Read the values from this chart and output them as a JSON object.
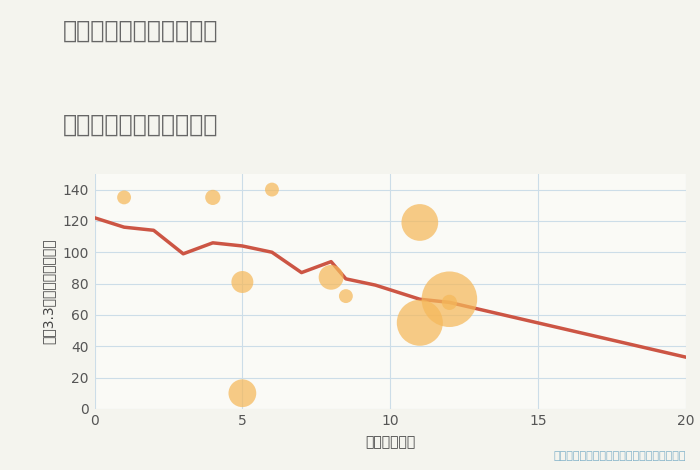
{
  "title_line1": "福岡県福岡市西区戸切の",
  "title_line2": "駅距離別中古戸建て価格",
  "xlabel": "駅距離（分）",
  "ylabel": "坪（3.3㎡）単価（万円）",
  "background_color": "#f4f4ee",
  "plot_bg_color": "#fafaf6",
  "line_color": "#cc5544",
  "line_x": [
    0,
    1,
    2,
    3,
    4,
    5,
    6,
    7,
    8,
    8.5,
    9.5,
    11,
    12,
    20
  ],
  "line_y": [
    122,
    116,
    114,
    99,
    106,
    104,
    100,
    87,
    94,
    83,
    79,
    70,
    68,
    33
  ],
  "scatter_x": [
    1,
    4,
    5,
    5,
    6,
    8,
    8.5,
    11,
    11,
    12,
    12
  ],
  "scatter_y": [
    135,
    135,
    81,
    10,
    140,
    84,
    72,
    119,
    55,
    70,
    68
  ],
  "scatter_sizes": [
    100,
    120,
    250,
    400,
    100,
    320,
    100,
    700,
    1100,
    1600,
    120
  ],
  "scatter_color": "#f5b85a",
  "scatter_alpha": 0.72,
  "note_text": "円の大きさは、取引のあった物件面積を示す",
  "note_color": "#7fb0c8",
  "title_color": "#666666",
  "xlim": [
    0,
    20
  ],
  "ylim": [
    0,
    150
  ],
  "xticks": [
    0,
    5,
    10,
    15,
    20
  ],
  "yticks": [
    0,
    20,
    40,
    60,
    80,
    100,
    120,
    140
  ],
  "grid_color": "#ccdde8",
  "title_fontsize": 17,
  "axis_label_fontsize": 10,
  "tick_fontsize": 10
}
